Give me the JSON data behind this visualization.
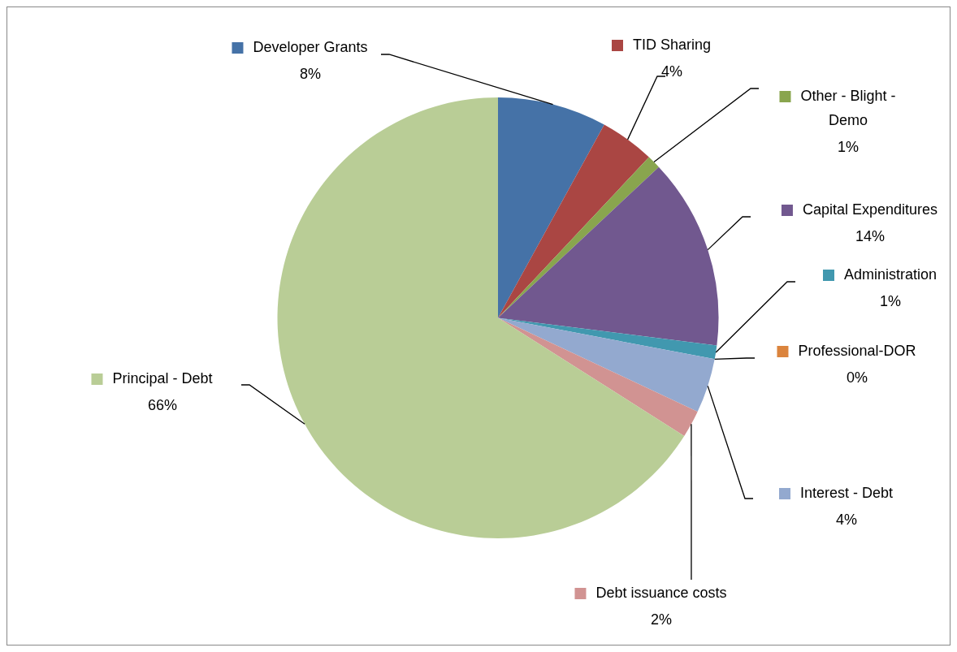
{
  "chart_data": {
    "type": "pie",
    "categories": [
      "Developer Grants",
      "TID Sharing",
      "Other - Blight - Demo",
      "Capital Expenditures",
      "Administration",
      "Professional-DOR",
      "Interest - Debt",
      "Debt issuance costs",
      "Principal - Debt"
    ],
    "values": [
      8,
      4,
      1,
      14,
      1,
      0,
      4,
      2,
      66
    ],
    "colors": [
      "#4572a7",
      "#aa4643",
      "#89a54e",
      "#71588f",
      "#4198af",
      "#db843d",
      "#93a9cf",
      "#d19392",
      "#b9cd96"
    ],
    "legend": "right",
    "value_labels": [
      "8%",
      "4%",
      "1%",
      "14%",
      "1%",
      "0%",
      "4%",
      "2%",
      "66%"
    ]
  }
}
